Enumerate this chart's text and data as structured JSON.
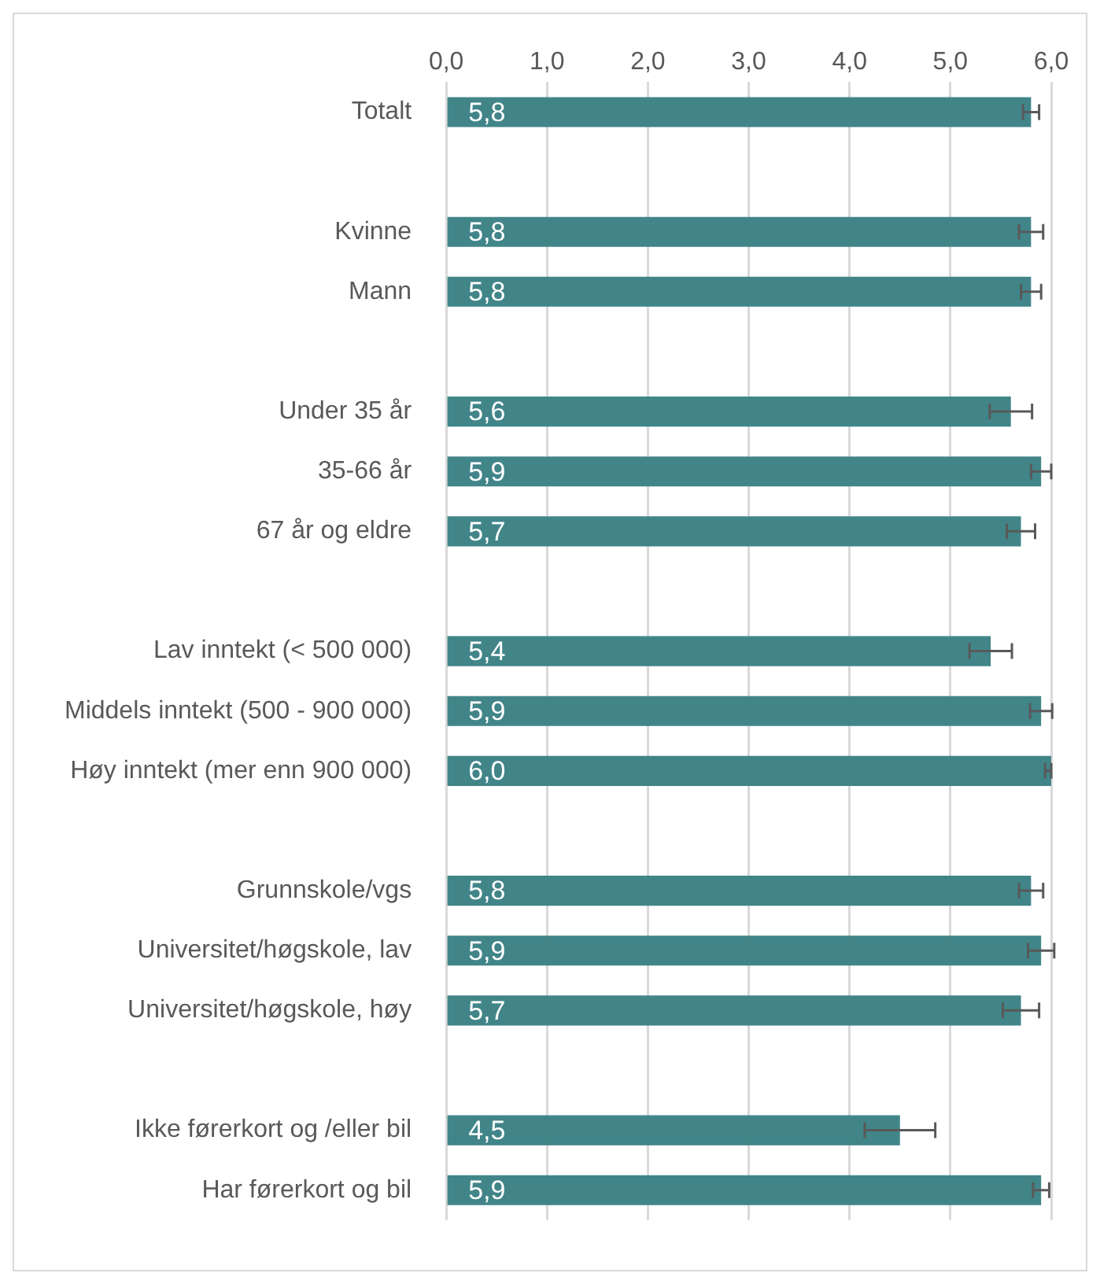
{
  "chart_data": {
    "type": "bar",
    "orientation": "horizontal",
    "categories": [
      "Totalt",
      null,
      "Kvinne",
      "Mann",
      null,
      "Under 35 år",
      "35-66 år",
      "67 år og eldre",
      null,
      "Lav inntekt (< 500 000)",
      "Middels inntekt (500 - 900 000)",
      "Høy inntekt (mer enn 900 000)",
      null,
      "Grunnskole/vgs",
      "Universitet/høgskole, lav",
      "Universitet/høgskole, høy",
      null,
      "Ikke førerkort og /eller bil",
      "Har førerkort og bil"
    ],
    "values": [
      5.8,
      null,
      5.8,
      5.8,
      null,
      5.6,
      5.9,
      5.7,
      null,
      5.4,
      5.9,
      6.0,
      null,
      5.8,
      5.9,
      5.7,
      null,
      4.5,
      5.9
    ],
    "value_labels": [
      "5,8",
      null,
      "5,8",
      "5,8",
      null,
      "5,6",
      "5,9",
      "5,7",
      null,
      "5,4",
      "5,9",
      "6,0",
      null,
      "5,8",
      "5,9",
      "5,7",
      null,
      "4,5",
      "5,9"
    ],
    "errors": [
      0.08,
      null,
      0.12,
      0.1,
      null,
      0.21,
      0.1,
      0.14,
      null,
      0.21,
      0.11,
      [
        5.94,
        6.0
      ],
      null,
      0.12,
      0.13,
      0.18,
      null,
      0.35,
      0.08
    ],
    "color": "#418589",
    "xlim": [
      0,
      6
    ],
    "xticks": [
      {
        "value": 0,
        "label": "0,0"
      },
      {
        "value": 1,
        "label": "1,0"
      },
      {
        "value": 2,
        "label": "2,0"
      },
      {
        "value": 3,
        "label": "3,0"
      },
      {
        "value": 4,
        "label": "4,0"
      },
      {
        "value": 5,
        "label": "5,0"
      },
      {
        "value": 6,
        "label": "6,0"
      }
    ],
    "grid": "x"
  }
}
